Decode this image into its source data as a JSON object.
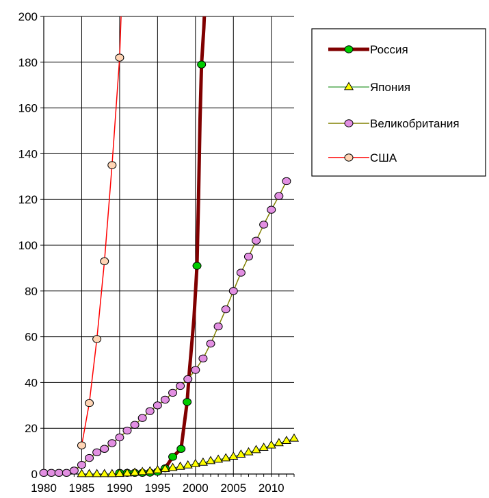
{
  "chart_data": {
    "type": "line",
    "title": "",
    "xlabel": "",
    "ylabel": "",
    "xlim": [
      1980,
      2013
    ],
    "ylim": [
      0,
      200
    ],
    "x_ticks": [
      1980,
      1985,
      1990,
      1995,
      2000,
      2005,
      2010
    ],
    "x_tick_labels": [
      "1980",
      "1985",
      "1990",
      "1995",
      "2000",
      "2005",
      "2010"
    ],
    "y_ticks": [
      0,
      20,
      40,
      60,
      80,
      100,
      120,
      140,
      160,
      180,
      200
    ],
    "y_tick_labels": [
      "0",
      "20",
      "40",
      "60",
      "80",
      "100",
      "120",
      "140",
      "160",
      "180",
      "200"
    ],
    "grid": true,
    "legend_position": "top-right",
    "series": [
      {
        "name": "Россия",
        "color": "#800000",
        "line_color": "#800000",
        "marker": "circle",
        "marker_fill": "#00cc00",
        "line_width": 5,
        "points": [
          {
            "x": 1990,
            "y": 0.5,
            "marker": true
          },
          {
            "x": 1991,
            "y": 0.5,
            "marker": true
          },
          {
            "x": 1992,
            "y": 0.5,
            "marker": true
          },
          {
            "x": 1993,
            "y": 0.5,
            "marker": true
          },
          {
            "x": 1994,
            "y": 0.6,
            "marker": true
          },
          {
            "x": 1995,
            "y": 1.0,
            "marker": true
          },
          {
            "x": 1996,
            "y": 2.5,
            "marker": true
          },
          {
            "x": 1997,
            "y": 7.5,
            "marker": true
          },
          {
            "x": 1998.1,
            "y": 11,
            "marker": true
          },
          {
            "x": 1998.9,
            "y": 31.5,
            "marker": true
          },
          {
            "x": 1999.2,
            "y": 45,
            "marker": false
          },
          {
            "x": 1999.8,
            "y": 68,
            "marker": false
          },
          {
            "x": 2000.2,
            "y": 91,
            "marker": true
          },
          {
            "x": 2000.4,
            "y": 120,
            "marker": false
          },
          {
            "x": 2000.6,
            "y": 155,
            "marker": false
          },
          {
            "x": 2000.8,
            "y": 179,
            "marker": true
          },
          {
            "x": 2001.1,
            "y": 195,
            "marker": false
          },
          {
            "x": 2001.3,
            "y": 210,
            "marker": false
          }
        ]
      },
      {
        "name": "Япония",
        "color": "#008000",
        "line_color": "#008000",
        "marker": "triangle",
        "marker_fill": "#ffff00",
        "line_width": 1,
        "points": [
          {
            "x": 1985,
            "y": 0
          },
          {
            "x": 1986,
            "y": 0
          },
          {
            "x": 1987,
            "y": 0
          },
          {
            "x": 1988,
            "y": 0
          },
          {
            "x": 1989,
            "y": 0
          },
          {
            "x": 1990,
            "y": 0.1
          },
          {
            "x": 1991,
            "y": 0.3
          },
          {
            "x": 1992,
            "y": 0.6
          },
          {
            "x": 1993,
            "y": 0.9
          },
          {
            "x": 1994,
            "y": 1.2
          },
          {
            "x": 1995,
            "y": 1.7
          },
          {
            "x": 1996,
            "y": 2.2
          },
          {
            "x": 1997,
            "y": 2.7
          },
          {
            "x": 1998,
            "y": 3.2
          },
          {
            "x": 1999,
            "y": 3.8
          },
          {
            "x": 2000,
            "y": 4.4
          },
          {
            "x": 2001,
            "y": 5.0
          },
          {
            "x": 2002,
            "y": 5.7
          },
          {
            "x": 2003,
            "y": 6.3
          },
          {
            "x": 2004,
            "y": 6.9
          },
          {
            "x": 2005,
            "y": 7.6
          },
          {
            "x": 2006,
            "y": 8.5
          },
          {
            "x": 2007,
            "y": 9.5
          },
          {
            "x": 2008,
            "y": 10.5
          },
          {
            "x": 2009,
            "y": 11.5
          },
          {
            "x": 2010,
            "y": 12.5
          },
          {
            "x": 2011,
            "y": 13.5
          },
          {
            "x": 2012,
            "y": 14.5
          },
          {
            "x": 2013,
            "y": 15.5
          }
        ]
      },
      {
        "name": "Великобритания",
        "color": "#808000",
        "line_color": "#808000",
        "marker": "circle",
        "marker_fill": "#e28fe2",
        "line_width": 1.5,
        "points": [
          {
            "x": 1980,
            "y": 0.5
          },
          {
            "x": 1981,
            "y": 0.5
          },
          {
            "x": 1982,
            "y": 0.5
          },
          {
            "x": 1983,
            "y": 0.5
          },
          {
            "x": 1984,
            "y": 1.5
          },
          {
            "x": 1985,
            "y": 4
          },
          {
            "x": 1986,
            "y": 7
          },
          {
            "x": 1987,
            "y": 9.5
          },
          {
            "x": 1988,
            "y": 11
          },
          {
            "x": 1989,
            "y": 13.5
          },
          {
            "x": 1990,
            "y": 16
          },
          {
            "x": 1991,
            "y": 19
          },
          {
            "x": 1992,
            "y": 21.5
          },
          {
            "x": 1993,
            "y": 24.5
          },
          {
            "x": 1994,
            "y": 27.5
          },
          {
            "x": 1995,
            "y": 30
          },
          {
            "x": 1996,
            "y": 32.5
          },
          {
            "x": 1997,
            "y": 35.5
          },
          {
            "x": 1998,
            "y": 38.5
          },
          {
            "x": 1999,
            "y": 41.5
          },
          {
            "x": 2000,
            "y": 45.5
          },
          {
            "x": 2001,
            "y": 50.5
          },
          {
            "x": 2002,
            "y": 57
          },
          {
            "x": 2003,
            "y": 64.5
          },
          {
            "x": 2004,
            "y": 72
          },
          {
            "x": 2005,
            "y": 80
          },
          {
            "x": 2006,
            "y": 88
          },
          {
            "x": 2007,
            "y": 95
          },
          {
            "x": 2008,
            "y": 102
          },
          {
            "x": 2009,
            "y": 109
          },
          {
            "x": 2010,
            "y": 115.5
          },
          {
            "x": 2011,
            "y": 121.5
          },
          {
            "x": 2012,
            "y": 128
          }
        ]
      },
      {
        "name": "США",
        "color": "#ff0000",
        "line_color": "#ff0000",
        "marker": "circle",
        "marker_fill": "#ffd5b5",
        "line_width": 1.5,
        "points": [
          {
            "x": 1985,
            "y": 12.5,
            "marker": true
          },
          {
            "x": 1986,
            "y": 31,
            "marker": true
          },
          {
            "x": 1987,
            "y": 59,
            "marker": true
          },
          {
            "x": 1988,
            "y": 93,
            "marker": true
          },
          {
            "x": 1989,
            "y": 135,
            "marker": true
          },
          {
            "x": 1990,
            "y": 182,
            "marker": true
          },
          {
            "x": 1990.3,
            "y": 210,
            "marker": false
          }
        ]
      }
    ]
  }
}
